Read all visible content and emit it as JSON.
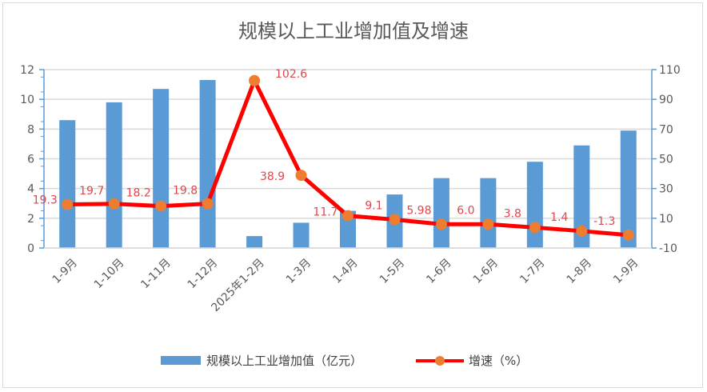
{
  "chart_data": {
    "type": "bar+line",
    "title": "规模以上工业增加值及增速",
    "categories": [
      "1-9月",
      "1-10月",
      "1-11月",
      "1-12月",
      "2025年1-2月",
      "1-3月",
      "1-4月",
      "1-5月",
      "1-6月",
      "1-6月",
      "1-7月",
      "1-8月",
      "1-9月"
    ],
    "series": [
      {
        "name": "规模以上工业增加值（亿元）",
        "type": "bar",
        "axis": "left",
        "color": "#5b9bd5",
        "values": [
          8.6,
          9.8,
          10.7,
          11.3,
          0.8,
          1.7,
          2.5,
          3.6,
          4.7,
          4.7,
          5.8,
          6.9,
          7.9
        ]
      },
      {
        "name": "增速（%）",
        "type": "line",
        "axis": "right",
        "color": "#ff0000",
        "marker_color": "#ed7d31",
        "values": [
          19.3,
          19.7,
          18.2,
          19.8,
          102.6,
          38.9,
          11.7,
          9.1,
          5.98,
          6.0,
          3.8,
          1.4,
          -1.3
        ],
        "labels": [
          "19.3",
          "19.7",
          "18.2",
          "19.8",
          "102.6",
          "38.9",
          "11.7",
          "9.1",
          "5.98",
          "6.0",
          "3.8",
          "1.4",
          "-1.3"
        ]
      }
    ],
    "y_left": {
      "range": [
        0,
        12
      ],
      "ticks": [
        "0",
        "2",
        "4",
        "6",
        "8",
        "10",
        "12"
      ]
    },
    "y_right": {
      "range": [
        -10,
        110
      ],
      "ticks": [
        "-10",
        "10",
        "30",
        "50",
        "70",
        "90",
        "110"
      ]
    },
    "grid": true,
    "legend": "bottom"
  }
}
